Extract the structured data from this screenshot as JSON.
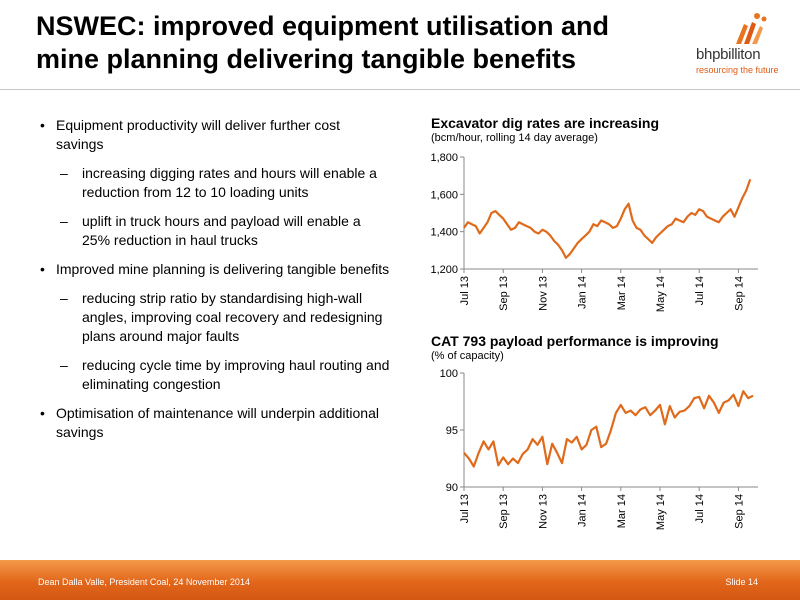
{
  "slide": {
    "title_line1": "NSWEC: improved equipment utilisation and",
    "title_line2": "mine planning delivering tangible benefits",
    "logo_name": "bhpbilliton",
    "logo_tagline": "resourcing the future"
  },
  "bullets": [
    {
      "level": 1,
      "marker": "•",
      "text": "Equipment productivity will deliver further cost savings"
    },
    {
      "level": 2,
      "marker": "–",
      "text": "increasing digging rates and hours will enable a reduction from 12 to 10 loading units"
    },
    {
      "level": 2,
      "marker": "–",
      "text": "uplift in truck hours and payload will enable a 25% reduction in haul trucks"
    },
    {
      "level": 1,
      "marker": "•",
      "text": "Improved mine planning is delivering tangible benefits"
    },
    {
      "level": 2,
      "marker": "–",
      "text": "reducing strip ratio by standardising high-wall angles, improving coal recovery and redesigning plans around major faults"
    },
    {
      "level": 2,
      "marker": "–",
      "text": "reducing cycle time by improving haul routing and eliminating congestion"
    },
    {
      "level": 1,
      "marker": "•",
      "text": "Optimisation of maintenance will underpin additional savings"
    }
  ],
  "footer": {
    "left": "Dean Dalla Valle, President Coal, 24 November 2014",
    "right": "Slide 14"
  },
  "colors": {
    "line": "#e06a1b",
    "axis": "#888888",
    "footer": "#e2661a"
  },
  "chart_data": [
    {
      "type": "line",
      "title": "Excavator dig rates are increasing",
      "subtitle": "(bcm/hour, rolling 14 day average)",
      "xlabel": "",
      "ylabel": "",
      "ylim": [
        1200,
        1800
      ],
      "yticks": [
        1200,
        1400,
        1600,
        1800
      ],
      "ytick_labels": [
        "1,200",
        "1,400",
        "1,600",
        "1,800"
      ],
      "xlim": [
        0,
        15
      ],
      "xticks": [
        0,
        2,
        4,
        6,
        8,
        10,
        12,
        14
      ],
      "xtick_labels": [
        "Jul 13",
        "Sep 13",
        "Nov 13",
        "Jan 14",
        "Mar 14",
        "May 14",
        "Jul 14",
        "Sep 14"
      ],
      "grid": false,
      "series": [
        {
          "x": [
            0,
            0.2,
            0.4,
            0.6,
            0.8,
            1.0,
            1.2,
            1.4,
            1.6,
            1.8,
            2.0,
            2.2,
            2.4,
            2.6,
            2.8,
            3.0,
            3.2,
            3.4,
            3.6,
            3.8,
            4.0,
            4.2,
            4.4,
            4.6,
            4.8,
            5.0,
            5.2,
            5.4,
            5.6,
            5.8,
            6.0,
            6.2,
            6.4,
            6.6,
            6.8,
            7.0,
            7.2,
            7.4,
            7.6,
            7.8,
            8.0,
            8.2,
            8.4,
            8.6,
            8.8,
            9.0,
            9.2,
            9.4,
            9.6,
            9.8,
            10.0,
            10.2,
            10.4,
            10.6,
            10.8,
            11.0,
            11.2,
            11.4,
            11.6,
            11.8,
            12.0,
            12.2,
            12.4,
            12.6,
            12.8,
            13.0,
            13.2,
            13.4,
            13.6,
            13.8,
            14.0,
            14.2,
            14.4,
            14.6
          ],
          "values": [
            1420,
            1450,
            1440,
            1430,
            1390,
            1420,
            1450,
            1500,
            1510,
            1490,
            1470,
            1440,
            1410,
            1420,
            1450,
            1440,
            1430,
            1420,
            1400,
            1390,
            1410,
            1400,
            1380,
            1350,
            1330,
            1300,
            1260,
            1280,
            1310,
            1340,
            1360,
            1380,
            1400,
            1440,
            1430,
            1460,
            1450,
            1440,
            1420,
            1430,
            1470,
            1520,
            1550,
            1460,
            1420,
            1410,
            1380,
            1360,
            1340,
            1370,
            1390,
            1410,
            1430,
            1440,
            1470,
            1460,
            1450,
            1480,
            1500,
            1490,
            1520,
            1510,
            1480,
            1470,
            1460,
            1450,
            1480,
            1500,
            1520,
            1480,
            1530,
            1580,
            1620,
            1680
          ]
        }
      ]
    },
    {
      "type": "line",
      "title": "CAT 793 payload performance is improving",
      "subtitle": "(% of capacity)",
      "xlabel": "",
      "ylabel": "",
      "ylim": [
        90,
        100
      ],
      "yticks": [
        90,
        95,
        100
      ],
      "ytick_labels": [
        "90",
        "95",
        "100"
      ],
      "xlim": [
        0,
        15
      ],
      "xticks": [
        0,
        2,
        4,
        6,
        8,
        10,
        12,
        14
      ],
      "xtick_labels": [
        "Jul 13",
        "Sep 13",
        "Nov 13",
        "Jan 14",
        "Mar 14",
        "May 14",
        "Jul 14",
        "Sep 14"
      ],
      "grid": false,
      "series": [
        {
          "x": [
            0,
            0.25,
            0.5,
            0.75,
            1.0,
            1.25,
            1.5,
            1.75,
            2.0,
            2.25,
            2.5,
            2.75,
            3.0,
            3.25,
            3.5,
            3.75,
            4.0,
            4.25,
            4.5,
            4.75,
            5.0,
            5.25,
            5.5,
            5.75,
            6.0,
            6.25,
            6.5,
            6.75,
            7.0,
            7.25,
            7.5,
            7.75,
            8.0,
            8.25,
            8.5,
            8.75,
            9.0,
            9.25,
            9.5,
            9.75,
            10.0,
            10.25,
            10.5,
            10.75,
            11.0,
            11.25,
            11.5,
            11.75,
            12.0,
            12.25,
            12.5,
            12.75,
            13.0,
            13.25,
            13.5,
            13.75,
            14.0,
            14.25,
            14.5,
            14.75
          ],
          "values": [
            93.0,
            92.5,
            91.8,
            93.0,
            94.0,
            93.3,
            94.0,
            91.9,
            92.6,
            92.0,
            92.5,
            92.1,
            92.9,
            93.3,
            94.2,
            93.7,
            94.4,
            92.0,
            93.8,
            93.0,
            92.1,
            94.2,
            93.9,
            94.4,
            93.3,
            93.7,
            95.0,
            95.3,
            93.5,
            93.8,
            95.0,
            96.5,
            97.2,
            96.5,
            96.7,
            96.3,
            96.8,
            97.0,
            96.3,
            96.7,
            97.2,
            95.5,
            97.1,
            96.1,
            96.6,
            96.7,
            97.1,
            97.8,
            97.9,
            96.9,
            98.0,
            97.4,
            96.5,
            97.4,
            97.6,
            98.1,
            97.1,
            98.4,
            97.8,
            98.0
          ]
        }
      ]
    }
  ]
}
